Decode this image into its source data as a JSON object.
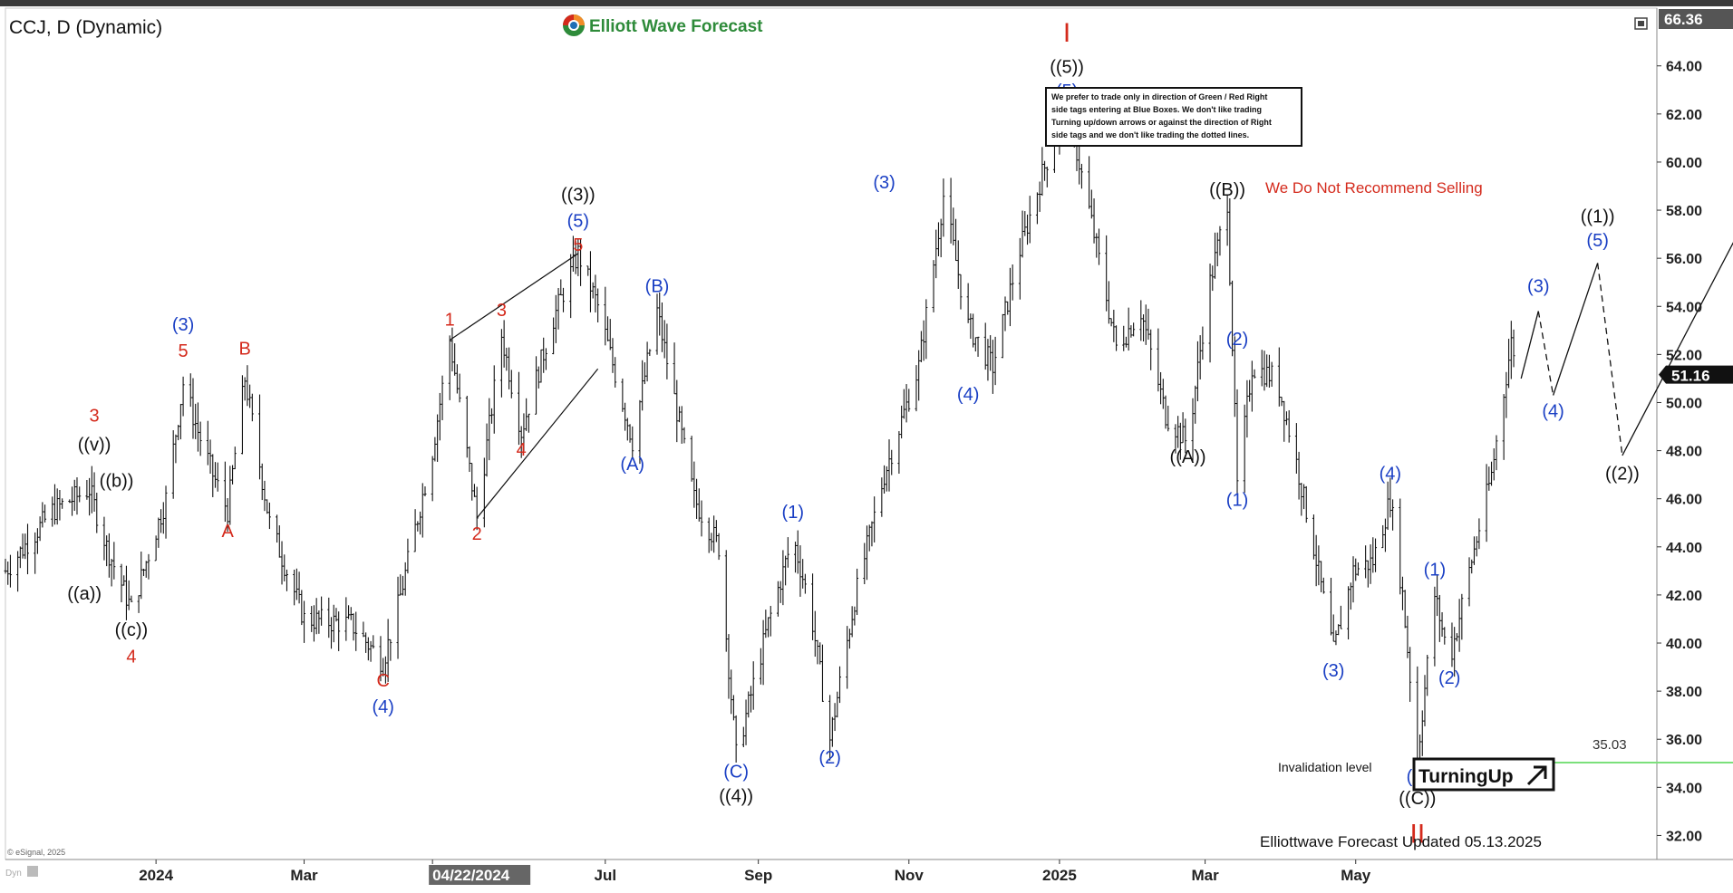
{
  "header": {
    "symbol_title": "CCJ, D (Dynamic)",
    "brand": "Elliott Wave Forecast",
    "brand_colors": {
      "orange": "#f28c28",
      "green": "#2e8b3a",
      "blue": "#1f6fb5",
      "red": "#d42a1c"
    }
  },
  "info_box": {
    "lines": [
      "We prefer to trade only in direction of Green / Red Right",
      "side tags entering at Blue Boxes. We don't like trading",
      "Turning up/down arrows or against the direction of Right",
      "side tags and we don't like trading the dotted lines."
    ]
  },
  "recommendation": "We Do Not Recommend Selling",
  "badge": {
    "label": "TurningUp",
    "icon": "arrow-up-right-icon"
  },
  "invalidation": {
    "label": "Invalidation level",
    "value": "35.03",
    "price": 35.03,
    "color": "#7be07b"
  },
  "footer": {
    "updated": "Elliottwave Forecast Updated 05.13.2025",
    "copyright": "© eSignal, 2025",
    "dyn_label": "Dyn"
  },
  "toolbar_icon": "window-restore-icon",
  "chart_data": {
    "type": "bar",
    "style": "ohlc",
    "title": "CCJ, D (Dynamic)",
    "xlabel": "",
    "ylabel": "",
    "ylim": [
      31,
      66.4
    ],
    "grid": false,
    "y_ticks": [
      32,
      34,
      36,
      38,
      40,
      42,
      44,
      46,
      48,
      50,
      52,
      54,
      56,
      58,
      60,
      62,
      64
    ],
    "x_labels": [
      "2024",
      "Mar",
      "04/22/2024",
      "Jul",
      "Sep",
      "Nov",
      "2025",
      "Mar",
      "May"
    ],
    "x_label_highlight": "04/22/2024",
    "x_range": [
      "2023-11-01",
      "2025-08-31"
    ],
    "x_label_dates": [
      "2024-01-01",
      "2024-03-01",
      "2024-04-22",
      "2024-07-01",
      "2024-09-01",
      "2024-11-01",
      "2025-01-01",
      "2025-03-01",
      "2025-05-01"
    ],
    "last_price": {
      "value": 51.16,
      "label": "51.16"
    },
    "top_price": {
      "value": 66.36,
      "label": "66.36"
    },
    "price_path": [
      [
        "2023-11-01",
        43.0
      ],
      [
        "2023-11-20",
        45.5
      ],
      [
        "2023-12-05",
        46.4
      ],
      [
        "2023-12-12",
        44.0
      ],
      [
        "2023-12-22",
        41.4
      ],
      [
        "2024-01-05",
        46.0
      ],
      [
        "2024-01-12",
        50.8
      ],
      [
        "2024-01-18",
        48.8
      ],
      [
        "2024-01-24",
        47.0
      ],
      [
        "2024-01-30",
        45.5
      ],
      [
        "2024-02-06",
        51.0
      ],
      [
        "2024-02-16",
        45.0
      ],
      [
        "2024-03-01",
        41.0
      ],
      [
        "2024-03-20",
        40.8
      ],
      [
        "2024-04-02",
        39.2
      ],
      [
        "2024-04-08",
        41.5
      ],
      [
        "2024-04-22",
        48.0
      ],
      [
        "2024-04-29",
        52.6
      ],
      [
        "2024-05-10",
        45.2
      ],
      [
        "2024-05-20",
        52.8
      ],
      [
        "2024-05-28",
        48.8
      ],
      [
        "2024-06-10",
        53.5
      ],
      [
        "2024-06-20",
        56.2
      ],
      [
        "2024-06-28",
        54.0
      ],
      [
        "2024-07-12",
        48.4
      ],
      [
        "2024-07-22",
        53.8
      ],
      [
        "2024-08-06",
        46.0
      ],
      [
        "2024-08-16",
        44.0
      ],
      [
        "2024-08-23",
        35.3
      ],
      [
        "2024-09-05",
        40.8
      ],
      [
        "2024-09-15",
        44.4
      ],
      [
        "2024-09-22",
        41.5
      ],
      [
        "2024-09-30",
        36.0
      ],
      [
        "2024-10-10",
        41.8
      ],
      [
        "2024-10-22",
        47.0
      ],
      [
        "2024-11-05",
        51.5
      ],
      [
        "2024-11-15",
        58.6
      ],
      [
        "2024-11-25",
        53.2
      ],
      [
        "2024-12-05",
        51.5
      ],
      [
        "2024-12-15",
        56.0
      ],
      [
        "2024-12-25",
        59.5
      ],
      [
        "2025-01-04",
        62.4
      ],
      [
        "2025-01-14",
        57.5
      ],
      [
        "2025-01-24",
        52.3
      ],
      [
        "2025-02-03",
        53.8
      ],
      [
        "2025-02-13",
        49.5
      ],
      [
        "2025-02-22",
        48.3
      ],
      [
        "2025-03-02",
        54.5
      ],
      [
        "2025-03-10",
        58.4
      ],
      [
        "2025-03-14",
        46.5
      ],
      [
        "2025-03-20",
        51.5
      ],
      [
        "2025-03-30",
        51.0
      ],
      [
        "2025-04-06",
        48.0
      ],
      [
        "2025-04-14",
        44.0
      ],
      [
        "2025-04-22",
        39.6
      ],
      [
        "2025-04-30",
        43.0
      ],
      [
        "2025-05-08",
        43.4
      ],
      [
        "2025-05-15",
        46.0
      ],
      [
        "2025-05-20",
        42.0
      ],
      [
        "2025-05-26",
        35.2
      ],
      [
        "2025-06-02",
        42.0
      ],
      [
        "2025-06-08",
        39.2
      ],
      [
        "2025-06-16",
        43.0
      ],
      [
        "2025-06-25",
        47.0
      ],
      [
        "2025-07-03",
        52.5
      ],
      [
        "2025-07-07",
        51.2
      ]
    ],
    "projection": {
      "solid": [
        [
          "2025-07-07",
          51.0
        ],
        [
          "2025-07-14",
          53.8
        ]
      ],
      "dashed_1": [
        [
          "2025-07-14",
          53.8
        ],
        [
          "2025-07-20",
          50.3
        ]
      ],
      "solid_2": [
        [
          "2025-07-20",
          50.3
        ],
        [
          "2025-08-07",
          55.8
        ]
      ],
      "dashed_2": [
        [
          "2025-08-07",
          55.8
        ],
        [
          "2025-08-17",
          47.8
        ]
      ],
      "solid_3": [
        [
          "2025-08-17",
          47.8
        ],
        [
          "2025-10-20",
          60.4
        ]
      ]
    },
    "trendlines": [
      [
        [
          "2024-04-29",
          52.6
        ],
        [
          "2024-06-20",
          56.2
        ]
      ],
      [
        [
          "2024-05-10",
          45.2
        ],
        [
          "2024-06-28",
          51.4
        ]
      ]
    ],
    "invalidation_line": [
      [
        "2025-05-26",
        35.03
      ],
      [
        "2025-10-30",
        35.03
      ]
    ],
    "wave_labels": [
      {
        "text": "((a))",
        "x": "2023-12-03",
        "y": 41.8,
        "color": "black"
      },
      {
        "text": "((b))",
        "x": "2023-12-16",
        "y": 46.5,
        "color": "black"
      },
      {
        "text": "((c))",
        "x": "2023-12-22",
        "y": 40.3,
        "color": "black"
      },
      {
        "text": "4",
        "x": "2023-12-22",
        "y": 39.2,
        "color": "red"
      },
      {
        "text": "((v))",
        "x": "2023-12-07",
        "y": 48.0,
        "color": "black"
      },
      {
        "text": "3",
        "x": "2023-12-07",
        "y": 49.2,
        "color": "red"
      },
      {
        "text": "(3)",
        "x": "2024-01-12",
        "y": 53.0,
        "color": "blue"
      },
      {
        "text": "5",
        "x": "2024-01-12",
        "y": 51.9,
        "color": "red"
      },
      {
        "text": "B",
        "x": "2024-02-06",
        "y": 52.0,
        "color": "red"
      },
      {
        "text": "A",
        "x": "2024-01-30",
        "y": 44.4,
        "color": "red"
      },
      {
        "text": "C",
        "x": "2024-04-02",
        "y": 38.2,
        "color": "red"
      },
      {
        "text": "(4)",
        "x": "2024-04-02",
        "y": 37.1,
        "color": "blue"
      },
      {
        "text": "1",
        "x": "2024-04-29",
        "y": 53.2,
        "color": "red"
      },
      {
        "text": "2",
        "x": "2024-05-10",
        "y": 44.3,
        "color": "red"
      },
      {
        "text": "3",
        "x": "2024-05-20",
        "y": 53.6,
        "color": "red"
      },
      {
        "text": "4",
        "x": "2024-05-28",
        "y": 47.8,
        "color": "red"
      },
      {
        "text": "((3))",
        "x": "2024-06-20",
        "y": 58.4,
        "color": "black"
      },
      {
        "text": "(5)",
        "x": "2024-06-20",
        "y": 57.3,
        "color": "blue"
      },
      {
        "text": "5",
        "x": "2024-06-20",
        "y": 56.3,
        "color": "red"
      },
      {
        "text": "(B)",
        "x": "2024-07-22",
        "y": 54.6,
        "color": "blue"
      },
      {
        "text": "(A)",
        "x": "2024-07-12",
        "y": 47.2,
        "color": "blue"
      },
      {
        "text": "(C)",
        "x": "2024-08-23",
        "y": 34.4,
        "color": "blue"
      },
      {
        "text": "((4))",
        "x": "2024-08-23",
        "y": 33.4,
        "color": "black"
      },
      {
        "text": "(1)",
        "x": "2024-09-15",
        "y": 45.2,
        "color": "blue"
      },
      {
        "text": "(2)",
        "x": "2024-09-30",
        "y": 35.0,
        "color": "blue"
      },
      {
        "text": "(3)",
        "x": "2024-10-22",
        "y": 58.9,
        "color": "blue"
      },
      {
        "text": "(4)",
        "x": "2024-11-25",
        "y": 50.1,
        "color": "blue"
      },
      {
        "text": "I",
        "x": "2025-01-04",
        "y": 65.0,
        "color": "red"
      },
      {
        "text": "((5))",
        "x": "2025-01-04",
        "y": 63.7,
        "color": "black"
      },
      {
        "text": "(5)",
        "x": "2025-01-04",
        "y": 62.7,
        "color": "blue"
      },
      {
        "text": "((A))",
        "x": "2025-02-22",
        "y": 47.5,
        "color": "black"
      },
      {
        "text": "((B))",
        "x": "2025-03-10",
        "y": 58.6,
        "color": "black"
      },
      {
        "text": "(2)",
        "x": "2025-03-14",
        "y": 52.4,
        "color": "blue"
      },
      {
        "text": "(1)",
        "x": "2025-03-14",
        "y": 45.7,
        "color": "blue"
      },
      {
        "text": "(4)",
        "x": "2025-05-15",
        "y": 46.8,
        "color": "blue"
      },
      {
        "text": "(3)",
        "x": "2025-04-22",
        "y": 38.6,
        "color": "blue"
      },
      {
        "text": "(1)",
        "x": "2025-06-02",
        "y": 42.8,
        "color": "blue"
      },
      {
        "text": "(2)",
        "x": "2025-06-08",
        "y": 38.3,
        "color": "blue"
      },
      {
        "text": "(5)",
        "x": "2025-05-26",
        "y": 34.2,
        "color": "blue"
      },
      {
        "text": "((C))",
        "x": "2025-05-26",
        "y": 33.3,
        "color": "black"
      },
      {
        "text": "II",
        "x": "2025-05-26",
        "y": 31.7,
        "color": "red"
      },
      {
        "text": "(3)",
        "x": "2025-07-14",
        "y": 54.6,
        "color": "blue"
      },
      {
        "text": "(4)",
        "x": "2025-07-20",
        "y": 49.4,
        "color": "blue"
      },
      {
        "text": "((1))",
        "x": "2025-08-07",
        "y": 57.5,
        "color": "black"
      },
      {
        "text": "(5)",
        "x": "2025-08-07",
        "y": 56.5,
        "color": "blue"
      },
      {
        "text": "((2))",
        "x": "2025-08-17",
        "y": 46.8,
        "color": "black"
      }
    ]
  }
}
